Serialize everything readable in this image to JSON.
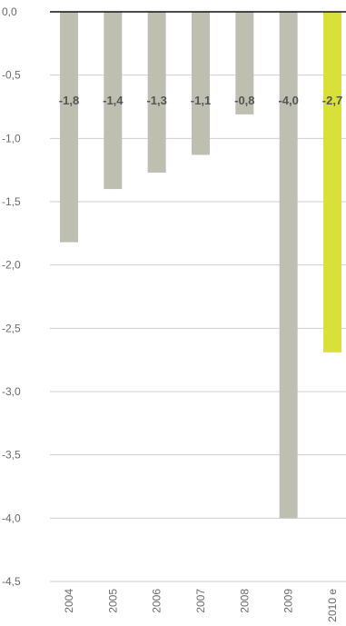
{
  "chart_data": {
    "type": "bar",
    "categories": [
      "2004",
      "2005",
      "2006",
      "2007",
      "2008",
      "2009",
      "2010 e"
    ],
    "values": [
      -1.8,
      -1.4,
      -1.3,
      -1.1,
      -0.8,
      -4.0,
      -2.7
    ],
    "bar_heights": [
      -1.82,
      -1.4,
      -1.27,
      -1.13,
      -0.81,
      -4.0,
      -2.69
    ],
    "data_labels": [
      "-1,8",
      "-1,4",
      "-1,3",
      "-1,1",
      "-0,8",
      "-4,0",
      "-2,7"
    ],
    "yticks": [
      0.0,
      -0.5,
      -1.0,
      -1.5,
      -2.0,
      -2.5,
      -3.0,
      -3.5,
      -4.0,
      -4.5
    ],
    "ytick_labels": [
      "0,0",
      "-0,5",
      "-1,0",
      "-1,5",
      "-2,0",
      "-2,5",
      "-3,0",
      "-3,5",
      "-4,0",
      "-4,5"
    ],
    "ylim": [
      -4.5,
      0
    ],
    "grid": true,
    "title": "",
    "xlabel": "",
    "ylabel": "",
    "colors": {
      "bar": "#bebfb0",
      "highlight": "#d9e03a",
      "highlight_index": 6
    }
  }
}
